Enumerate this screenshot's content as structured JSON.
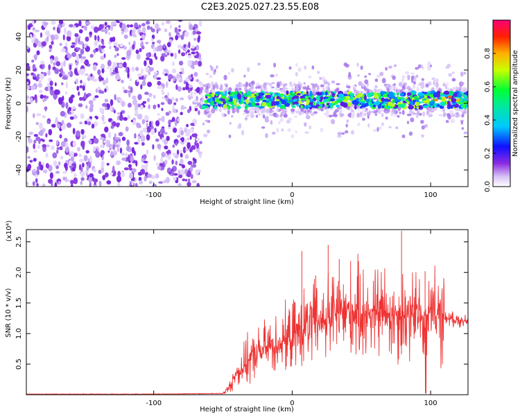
{
  "figure_title": "C2E3.2025.027.23.55.E08",
  "chart_data": [
    {
      "type": "heatmap",
      "title": "",
      "xlabel": "Height of straight line (km)",
      "ylabel": "Frequency (Hz)",
      "xlim": [
        -192,
        127
      ],
      "ylim": [
        -50,
        50
      ],
      "xticks": [
        -100,
        0,
        100
      ],
      "yticks": [
        -40,
        -20,
        0,
        20,
        40
      ],
      "grid": false,
      "colorbar": {
        "label": "Normalized spectral amplitude",
        "range": [
          0,
          1
        ],
        "ticks": [
          0.0,
          0.2,
          0.4,
          0.6,
          0.8
        ],
        "colors": [
          "#ffffff",
          "#d9c2f5",
          "#8a2be2",
          "#0000ff",
          "#00c8ff",
          "#00ff66",
          "#ffff00",
          "#ff8800",
          "#ff0000",
          "#ff0077"
        ]
      },
      "regions": [
        {
          "x_range": [
            -192,
            -66
          ],
          "freq_range": [
            -50,
            50
          ],
          "description_level": 0.15
        },
        {
          "x_range": [
            -66,
            127
          ],
          "freq_center": 2,
          "freq_spread": [
            -10,
            10
          ],
          "peak_level": 0.75
        }
      ]
    },
    {
      "type": "line",
      "title": "",
      "xlabel": "Height of straight line (km)",
      "ylabel": "SNR (10 * v/v)",
      "y_multiplier": "(x10⁴)",
      "xlim": [
        -192,
        127
      ],
      "ylim": [
        0,
        2.7
      ],
      "xticks": [
        -100,
        0,
        100
      ],
      "yticks": [
        0.5,
        1.0,
        1.5,
        2.0,
        2.5
      ],
      "grid": false,
      "series": [
        {
          "color": "#ee3333",
          "envelope_x": [
            -192,
            -100,
            -50,
            -46,
            -40,
            -30,
            -20,
            -10,
            0,
            10,
            20,
            30,
            40,
            50,
            60,
            70,
            80,
            90,
            100,
            110,
            120,
            127
          ],
          "envelope_y": [
            0.01,
            0.01,
            0.02,
            0.1,
            0.35,
            0.6,
            0.75,
            0.85,
            0.95,
            1.1,
            1.2,
            1.3,
            1.35,
            1.35,
            1.35,
            1.35,
            1.3,
            1.3,
            1.28,
            1.26,
            1.22,
            1.2
          ],
          "spikes": [
            {
              "x": 7,
              "y": 2.35
            },
            {
              "x": 17,
              "y": 1.95
            },
            {
              "x": 26,
              "y": 2.45
            },
            {
              "x": 34,
              "y": 2.22
            },
            {
              "x": 79,
              "y": 2.68
            },
            {
              "x": 96,
              "y": 2.02
            }
          ]
        }
      ]
    }
  ],
  "ticklabels": {
    "top_x": [
      "-100",
      "0",
      "100"
    ],
    "top_y": [
      "-40",
      "-20",
      "0",
      "20",
      "40"
    ],
    "bottom_x": [
      "-100",
      "0",
      "100"
    ],
    "bottom_y": [
      "0.5",
      "1.0",
      "1.5",
      "2.0",
      "2.5"
    ],
    "colorbar": [
      "0.0",
      "0.2",
      "0.4",
      "0.6",
      "0.8"
    ]
  }
}
